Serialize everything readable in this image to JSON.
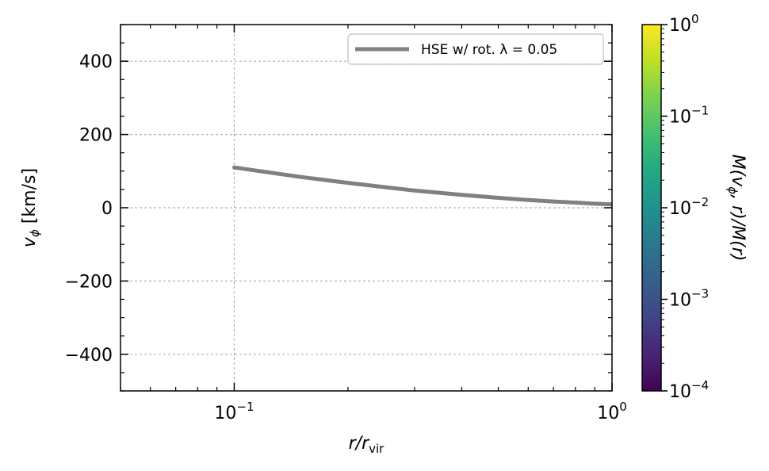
{
  "chart_data": {
    "type": "line",
    "xscale": "log",
    "xlim": [
      0.05,
      1.0
    ],
    "ylim": [
      -500,
      500
    ],
    "xlabel": "r/r_vir",
    "ylabel": "v_φ [km/s]",
    "xticks": [
      {
        "value": 0.1,
        "base": "10",
        "exp": "−1"
      },
      {
        "value": 1.0,
        "base": "10",
        "exp": "0"
      }
    ],
    "yticks": [
      {
        "value": 400,
        "label": "400"
      },
      {
        "value": 200,
        "label": "200"
      },
      {
        "value": 0,
        "label": "0"
      },
      {
        "value": -200,
        "label": "−200"
      },
      {
        "value": -400,
        "label": "−400"
      }
    ],
    "yminor": [
      -500,
      -450,
      -350,
      -300,
      -250,
      -150,
      -100,
      -50,
      50,
      100,
      150,
      250,
      300,
      350,
      450,
      500
    ],
    "vline_x": 0.1,
    "grid": true,
    "legend_position": "upper right",
    "series": [
      {
        "name": "HSE w/ rot. λ = 0.05",
        "color": "#808080",
        "x": [
          0.1,
          0.15,
          0.2,
          0.3,
          0.4,
          0.5,
          0.6,
          0.7,
          0.8,
          0.9,
          1.0
        ],
        "y": [
          110,
          84,
          68,
          47,
          35,
          27,
          21,
          17,
          14,
          11,
          9
        ]
      }
    ],
    "colorbar": {
      "scale": "log",
      "range": [
        0.0001,
        1
      ],
      "label": "M(v_φ, r)/M(r)",
      "colormap": "viridis",
      "ticks": [
        {
          "value": 1,
          "base": "10",
          "exp": "0"
        },
        {
          "value": 0.1,
          "base": "10",
          "exp": "−1"
        },
        {
          "value": 0.01,
          "base": "10",
          "exp": "−2"
        },
        {
          "value": 0.001,
          "base": "10",
          "exp": "−3"
        },
        {
          "value": 0.0001,
          "base": "10",
          "exp": "−4"
        }
      ]
    }
  }
}
